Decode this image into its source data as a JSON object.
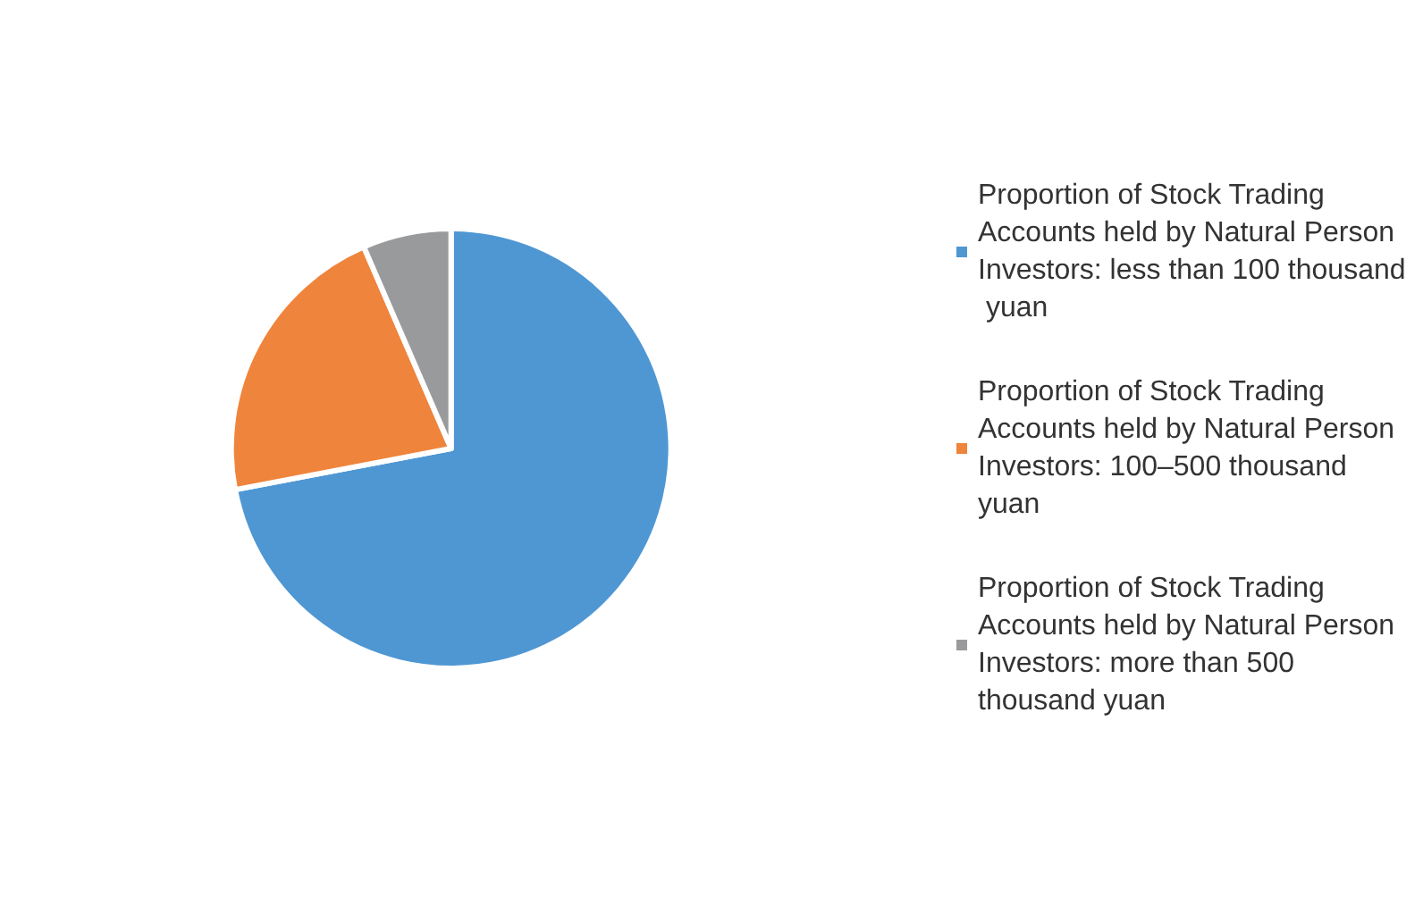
{
  "chart_data": {
    "type": "pie",
    "categories": [
      "Proportion of Stock Trading Accounts held by Natural Person Investors: less than 100 thousand yuan",
      "Proportion of Stock Trading Accounts held by Natural Person Investors: 100–500 thousand yuan",
      "Proportion of Stock Trading Accounts held by Natural Person Investors: more than 500 thousand yuan"
    ],
    "values": [
      72,
      21.5,
      6.5
    ],
    "colors": [
      "#4f97d3",
      "#ef843c",
      "#999a9c"
    ],
    "legend": "right"
  }
}
